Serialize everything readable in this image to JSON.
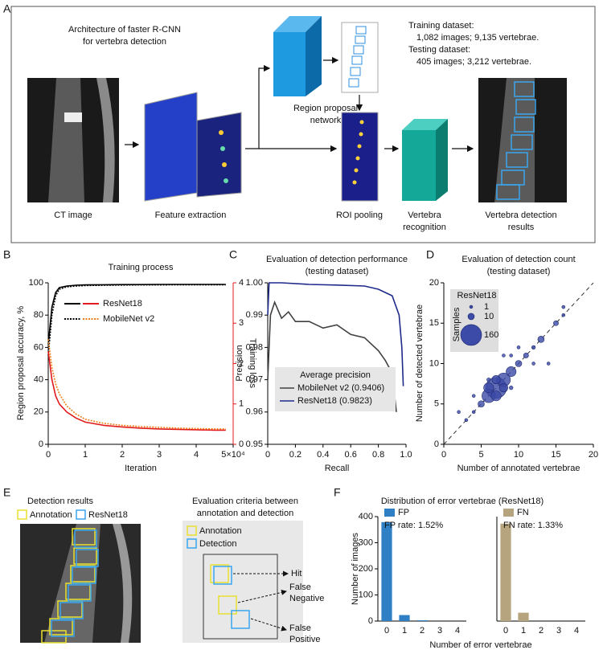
{
  "panel_a": {
    "label": "A",
    "title": [
      "Architecture of faster R-CNN",
      "for vertebra detection"
    ],
    "dataset": [
      "Training dataset:",
      "1,082 images; 9,135 vertebrae.",
      "Testing dataset:",
      "405 images; 3,212 vertebrae."
    ],
    "steps": {
      "ct": "CT image",
      "feature": "Feature extraction",
      "rpn": [
        "Region proposal",
        "network"
      ],
      "roi": "ROI pooling",
      "recognition": [
        "Vertebra",
        "recognition"
      ],
      "results": [
        "Vertebra detection",
        "results"
      ]
    }
  },
  "panel_e": {
    "label": "E",
    "title": "Detection results",
    "legend": [
      "Annotation",
      "ResNet18"
    ],
    "criteria_title": [
      "Evaluation criteria between",
      "annotation and detection"
    ],
    "criteria_legend": [
      "Annotation",
      "Detection"
    ],
    "outcomes": [
      "Hit",
      [
        "False",
        "Negative"
      ],
      [
        "False",
        "Positive"
      ]
    ]
  },
  "chart_data": [
    {
      "type": "line",
      "panel": "B",
      "title": "Training process",
      "xlabel": "Iteration",
      "ylabel": "Region proposal accuracy, %",
      "y2label": "Training loss",
      "x": [
        0,
        0.1,
        0.2,
        0.3,
        0.5,
        0.75,
        1,
        1.5,
        2,
        2.5,
        3,
        3.5,
        4,
        4.5,
        4.8
      ],
      "series": [
        {
          "name": "ResNet18",
          "color": "#000000",
          "style": "solid",
          "values": [
            62,
            85,
            94,
            97,
            98,
            98.5,
            98.7,
            98.8,
            98.9,
            98.9,
            99,
            99,
            99,
            99,
            99
          ]
        },
        {
          "name": "MobileNet v2",
          "color": "#000000",
          "style": "dotted",
          "values": [
            55,
            80,
            92,
            96,
            97.5,
            98,
            98.3,
            98.5,
            98.6,
            98.7,
            98.7,
            98.8,
            98.8,
            98.8,
            98.8
          ]
        },
        {
          "color": "#e31a1c",
          "style": "solid",
          "axis": "y2",
          "values": [
            2.3,
            1.6,
            1.2,
            1.0,
            0.8,
            0.65,
            0.55,
            0.47,
            0.43,
            0.4,
            0.38,
            0.37,
            0.36,
            0.35,
            0.35
          ]
        },
        {
          "color": "#f07f1a",
          "style": "dotted",
          "axis": "y2",
          "values": [
            2.6,
            1.9,
            1.5,
            1.25,
            0.95,
            0.75,
            0.62,
            0.52,
            0.47,
            0.44,
            0.42,
            0.4,
            0.39,
            0.38,
            0.38
          ]
        }
      ],
      "xlim": [
        0,
        5
      ],
      "xticks": [
        0,
        1,
        2,
        3,
        4,
        {
          "value": 5,
          "label": "5×10⁴"
        }
      ],
      "ylim": [
        0,
        100
      ],
      "yticks": [
        0,
        20,
        40,
        60,
        80,
        100
      ],
      "y2lim": [
        0,
        4
      ],
      "y2ticks": [
        0,
        1,
        2,
        3,
        4
      ],
      "y2color": "#e31a1c"
    },
    {
      "type": "line",
      "panel": "C",
      "title": "Evaluation of detection performance",
      "subtitle": "(testing dataset)",
      "xlabel": "Recall",
      "ylabel": "Precision",
      "legend_title": "Average precision",
      "series": [
        {
          "name": "MobileNet v2 (0.9406)",
          "color": "#404040",
          "style": "solid",
          "x": [
            0,
            0.02,
            0.05,
            0.1,
            0.15,
            0.2,
            0.3,
            0.4,
            0.5,
            0.6,
            0.7,
            0.8,
            0.85,
            0.9,
            0.93
          ],
          "values": [
            0.97,
            0.99,
            0.994,
            0.989,
            0.991,
            0.988,
            0.988,
            0.986,
            0.987,
            0.984,
            0.983,
            0.979,
            0.976,
            0.972,
            0.96
          ]
        },
        {
          "name": "ResNet18 (0.9823)",
          "color": "#1f2a8a",
          "style": "solid",
          "x": [
            0,
            0.01,
            0.1,
            0.3,
            0.5,
            0.7,
            0.8,
            0.9,
            0.95,
            0.97,
            0.98
          ],
          "values": [
            0.99,
            1.0,
            1.0,
            0.9995,
            0.9993,
            0.999,
            0.998,
            0.996,
            0.99,
            0.98,
            0.968
          ]
        }
      ],
      "xlim": [
        0,
        1
      ],
      "xticks": [
        0,
        0.2,
        0.4,
        0.6,
        0.8,
        {
          "value": 1,
          "label": "1.0"
        }
      ],
      "ylim": [
        0.95,
        1
      ],
      "yticks": [
        0.95,
        0.96,
        0.97,
        0.98,
        0.99,
        {
          "value": 1,
          "label": "1.00"
        }
      ]
    },
    {
      "type": "scatter",
      "panel": "D",
      "title": "Evaluation of detection count",
      "subtitle": "(testing dataset)",
      "xlabel": "Number of annotated vertebrae",
      "ylabel": "Number of detected vertebrae",
      "legend_title": "Samples",
      "size_legend": [
        1,
        10,
        160
      ],
      "diagonal": true,
      "series": [
        {
          "name": "ResNet18",
          "color": "#3c4aa8",
          "x": [
            7,
            6,
            8,
            7,
            6,
            9,
            10,
            5,
            8,
            7,
            13,
            15,
            11,
            4,
            2,
            3,
            9,
            12,
            16,
            16,
            12,
            10,
            8,
            14,
            4,
            9,
            6
          ],
          "values": [
            7,
            6,
            8,
            6,
            7,
            9,
            10,
            5,
            7,
            8,
            13,
            15,
            11,
            4,
            4,
            3,
            11,
            12,
            17,
            16,
            10,
            12,
            11,
            10,
            6,
            7,
            8
          ],
          "sizes": [
            160,
            60,
            60,
            30,
            30,
            30,
            10,
            10,
            20,
            20,
            10,
            5,
            5,
            1,
            1,
            1,
            1,
            2,
            1,
            1,
            1,
            1,
            1,
            1,
            1,
            2,
            2
          ]
        }
      ],
      "xlim": [
        0,
        20
      ],
      "xticks": [
        0,
        5,
        10,
        15,
        20
      ],
      "ylim": [
        0,
        20
      ],
      "yticks": [
        0,
        5,
        10,
        15,
        20
      ]
    },
    {
      "type": "bar",
      "panel": "F",
      "title": "Distribution of error vertebrae (ResNet18)",
      "xlabel": "Number of error vertebrae",
      "ylabel": "Number of images",
      "name": "FP",
      "annotation": "FP rate: 1.52%",
      "color": "#2e7fc4",
      "categories": [
        0,
        1,
        2,
        3,
        4
      ],
      "values": [
        379,
        23,
        3,
        0,
        0
      ],
      "ylim": [
        0,
        400
      ],
      "yticks": [
        0,
        100,
        200,
        300,
        400
      ]
    },
    {
      "type": "bar",
      "name": "FN",
      "annotation": "FN rate: 1.33%",
      "color": "#b5a47d",
      "categories": [
        0,
        1,
        2,
        3,
        4
      ],
      "values": [
        373,
        32,
        0,
        0,
        0
      ],
      "ylim": [
        0,
        400
      ]
    }
  ]
}
